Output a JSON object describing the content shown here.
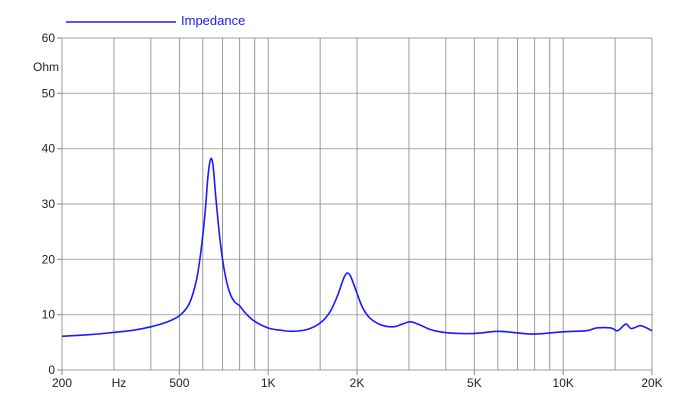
{
  "chart_data": {
    "type": "line",
    "title": "",
    "xlabel": "Hz",
    "ylabel": "Ohm",
    "x_scale": "log",
    "xlim": [
      200,
      20000
    ],
    "ylim": [
      0,
      60
    ],
    "grid": true,
    "legend_placement": "top-left",
    "x_tick_labels": [
      {
        "value": 200,
        "label": "200"
      },
      {
        "value": 500,
        "label": "500"
      },
      {
        "value": 1000,
        "label": "1K"
      },
      {
        "value": 2000,
        "label": "2K"
      },
      {
        "value": 5000,
        "label": "5K"
      },
      {
        "value": 10000,
        "label": "10K"
      },
      {
        "value": 20000,
        "label": "20K"
      }
    ],
    "x_unit_label_at": 300,
    "x_gridlines": [
      300,
      400,
      500,
      600,
      700,
      800,
      900,
      1000,
      1500,
      2000,
      3000,
      4000,
      5000,
      6000,
      7000,
      8000,
      9000,
      10000,
      15000,
      20000
    ],
    "y_ticks": [
      0,
      10,
      20,
      30,
      40,
      50,
      60
    ],
    "series": [
      {
        "name": "Impedance",
        "color": "#1a1aff",
        "points": [
          [
            200,
            6.1
          ],
          [
            250,
            6.4
          ],
          [
            300,
            6.8
          ],
          [
            350,
            7.2
          ],
          [
            400,
            7.8
          ],
          [
            450,
            8.6
          ],
          [
            500,
            9.8
          ],
          [
            540,
            12.0
          ],
          [
            570,
            16.0
          ],
          [
            590,
            21.0
          ],
          [
            610,
            28.0
          ],
          [
            625,
            35.0
          ],
          [
            638,
            38.1
          ],
          [
            650,
            37.0
          ],
          [
            665,
            31.0
          ],
          [
            685,
            24.0
          ],
          [
            710,
            18.0
          ],
          [
            740,
            14.0
          ],
          [
            770,
            12.3
          ],
          [
            800,
            11.6
          ],
          [
            840,
            10.2
          ],
          [
            900,
            8.8
          ],
          [
            1000,
            7.6
          ],
          [
            1100,
            7.2
          ],
          [
            1200,
            7.0
          ],
          [
            1350,
            7.3
          ],
          [
            1500,
            8.5
          ],
          [
            1620,
            10.5
          ],
          [
            1720,
            13.5
          ],
          [
            1800,
            16.5
          ],
          [
            1850,
            17.5
          ],
          [
            1900,
            17.0
          ],
          [
            1980,
            14.5
          ],
          [
            2080,
            11.5
          ],
          [
            2200,
            9.5
          ],
          [
            2400,
            8.2
          ],
          [
            2650,
            7.8
          ],
          [
            2850,
            8.3
          ],
          [
            3030,
            8.7
          ],
          [
            3250,
            8.2
          ],
          [
            3600,
            7.2
          ],
          [
            4100,
            6.7
          ],
          [
            5000,
            6.6
          ],
          [
            6000,
            7.0
          ],
          [
            7000,
            6.7
          ],
          [
            8000,
            6.5
          ],
          [
            10000,
            6.9
          ],
          [
            12000,
            7.1
          ],
          [
            13000,
            7.6
          ],
          [
            14500,
            7.6
          ],
          [
            15300,
            7.1
          ],
          [
            16300,
            8.3
          ],
          [
            17000,
            7.5
          ],
          [
            18200,
            8.0
          ],
          [
            19000,
            7.7
          ],
          [
            20000,
            7.1
          ]
        ]
      }
    ]
  }
}
